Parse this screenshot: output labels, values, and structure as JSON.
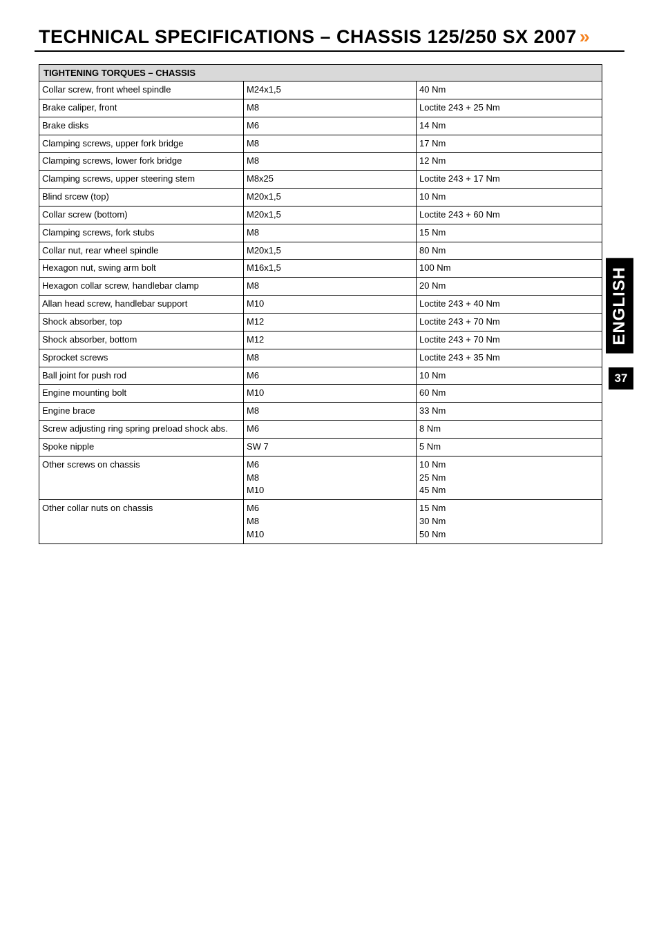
{
  "title_text": "TECHNICAL SPECIFICATIONS – CHASSIS  125/250 SX   2007",
  "title_arrow": "»",
  "table_header": "TIGHTENING TORQUES – CHASSIS",
  "side_tab": "ENGLISH",
  "page_number": "37",
  "colors": {
    "accent": "#f58220",
    "header_bg": "#d9d9d9",
    "border": "#000000",
    "text": "#000000",
    "tab_bg": "#000000",
    "tab_fg": "#ffffff"
  },
  "rows": [
    {
      "name": "Collar screw, front wheel spindle",
      "size": "M24x1,5",
      "torque": "40 Nm"
    },
    {
      "name": "Brake caliper, front",
      "size": "M8",
      "torque": "Loctite 243 + 25 Nm"
    },
    {
      "name": "Brake disks",
      "size": "M6",
      "torque": "14 Nm"
    },
    {
      "name": "Clamping screws, upper fork bridge",
      "size": "M8",
      "torque": "17 Nm"
    },
    {
      "name": "Clamping screws, lower fork bridge",
      "size": "M8",
      "torque": "12 Nm"
    },
    {
      "name": "Clamping screws, upper steering stem",
      "size": "M8x25",
      "torque": "Loctite 243 + 17 Nm"
    },
    {
      "name": "Blind srcew (top)",
      "size": "M20x1,5",
      "torque": "10 Nm"
    },
    {
      "name": "Collar screw (bottom)",
      "size": "M20x1,5",
      "torque": "Loctite 243 + 60 Nm"
    },
    {
      "name": "Clamping screws, fork stubs",
      "size": "M8",
      "torque": "15 Nm"
    },
    {
      "name": "Collar nut, rear wheel spindle",
      "size": "M20x1,5",
      "torque": "80 Nm"
    },
    {
      "name": "Hexagon nut, swing arm bolt",
      "size": "M16x1,5",
      "torque": "100 Nm"
    },
    {
      "name": "Hexagon collar screw, handlebar clamp",
      "size": "M8",
      "torque": "20 Nm"
    },
    {
      "name": "Allan head screw, handlebar support",
      "size": "M10",
      "torque": "Loctite 243 + 40 Nm"
    },
    {
      "name": "Shock absorber, top",
      "size": "M12",
      "torque": "Loctite 243 + 70 Nm"
    },
    {
      "name": "Shock absorber, bottom",
      "size": "M12",
      "torque": "Loctite 243 + 70 Nm"
    },
    {
      "name": "Sprocket screws",
      "size": "M8",
      "torque": "Loctite 243 + 35 Nm"
    },
    {
      "name": "Ball joint for push rod",
      "size": "M6",
      "torque": "10 Nm"
    },
    {
      "name": "Engine mounting bolt",
      "size": "M10",
      "torque": "60 Nm"
    },
    {
      "name": "Engine brace",
      "size": "M8",
      "torque": "33 Nm"
    },
    {
      "name": "Screw adjusting ring spring preload shock abs.",
      "size": "M6",
      "torque": "8 Nm"
    },
    {
      "name": "Spoke nipple",
      "size": "SW 7",
      "torque": "5 Nm"
    },
    {
      "name": "Other screws on chassis",
      "size": "M6\nM8\nM10",
      "torque": "10 Nm\n25 Nm\n45 Nm"
    },
    {
      "name": "Other collar nuts on chassis",
      "size": "M6\nM8\nM10",
      "torque": "15 Nm\n30 Nm\n50 Nm"
    }
  ]
}
